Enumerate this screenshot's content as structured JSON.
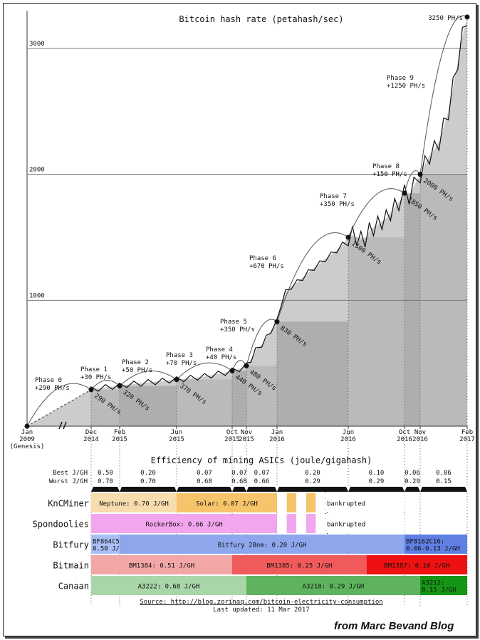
{
  "chart_data": {
    "type": "area",
    "title": "Bitcoin hash rate (petahash/sec)",
    "ylim": [
      0,
      3300
    ],
    "yticks": [
      1000,
      2000,
      3000
    ],
    "grid": true,
    "x_ticks": [
      {
        "label": [
          "Jan",
          "2009",
          "(Genesis)"
        ],
        "x": 0
      },
      {
        "label": [
          "Dec",
          "2014"
        ],
        "x": 1
      },
      {
        "label": [
          "Feb",
          "2015"
        ],
        "x": 3
      },
      {
        "label": [
          "Jun",
          "2015"
        ],
        "x": 7
      },
      {
        "label": [
          "Oct",
          "2015"
        ],
        "x": 11
      },
      {
        "label": [
          "Nov",
          "2015"
        ],
        "x": 12
      },
      {
        "label": [
          "Jan",
          "2016"
        ],
        "x": 14
      },
      {
        "label": [
          "Jun",
          "2016"
        ],
        "x": 19
      },
      {
        "label": [
          "Oct",
          "2016"
        ],
        "x": 23
      },
      {
        "label": [
          "Nov",
          "2016"
        ],
        "x": 24
      },
      {
        "label": [
          "Feb",
          "2017"
        ],
        "x": 27
      }
    ],
    "hash_rate_points": [
      {
        "x": 0,
        "y": 0,
        "label": ""
      },
      {
        "x": 1,
        "y": 290,
        "label": "290 PH/s"
      },
      {
        "x": 3,
        "y": 320,
        "label": "320 PH/s"
      },
      {
        "x": 7,
        "y": 370,
        "label": "370 PH/s"
      },
      {
        "x": 11,
        "y": 440,
        "label": "440 PH/s"
      },
      {
        "x": 12,
        "y": 480,
        "label": "480 PH/s"
      },
      {
        "x": 14,
        "y": 830,
        "label": "830 PH/s"
      },
      {
        "x": 19,
        "y": 1500,
        "label": "1500 PH/s"
      },
      {
        "x": 23,
        "y": 1850,
        "label": "1850 PH/s"
      },
      {
        "x": 24,
        "y": 2000,
        "label": "2000 PH/s"
      },
      {
        "x": 27,
        "y": 3250,
        "label": "3250 PH/s"
      }
    ],
    "hash_rate_series": [
      [
        1,
        290
      ],
      [
        1.5,
        300
      ],
      [
        2,
        308
      ],
      [
        2.5,
        315
      ],
      [
        3,
        320
      ],
      [
        3.5,
        330
      ],
      [
        4,
        335
      ],
      [
        4.5,
        340
      ],
      [
        5,
        348
      ],
      [
        5.5,
        352
      ],
      [
        6,
        358
      ],
      [
        6.5,
        365
      ],
      [
        7,
        370
      ],
      [
        7.5,
        375
      ],
      [
        8,
        382
      ],
      [
        8.5,
        388
      ],
      [
        9,
        395
      ],
      [
        9.5,
        405
      ],
      [
        10,
        415
      ],
      [
        10.5,
        425
      ],
      [
        11,
        440
      ],
      [
        11.5,
        455
      ],
      [
        12,
        480
      ],
      [
        12.3,
        530
      ],
      [
        12.6,
        600
      ],
      [
        13,
        650
      ],
      [
        13.3,
        700
      ],
      [
        13.6,
        760
      ],
      [
        14,
        830
      ],
      [
        14.3,
        980
      ],
      [
        14.6,
        1060
      ],
      [
        15,
        1110
      ],
      [
        15.4,
        1140
      ],
      [
        15.8,
        1180
      ],
      [
        16.2,
        1220
      ],
      [
        16.6,
        1260
      ],
      [
        17,
        1290
      ],
      [
        17.4,
        1330
      ],
      [
        17.8,
        1360
      ],
      [
        18.2,
        1400
      ],
      [
        18.6,
        1440
      ],
      [
        19,
        1500
      ],
      [
        19.3,
        1520
      ],
      [
        19.6,
        1500
      ],
      [
        19.9,
        1480
      ],
      [
        20.2,
        1490
      ],
      [
        20.5,
        1550
      ],
      [
        20.8,
        1580
      ],
      [
        21.1,
        1600
      ],
      [
        21.4,
        1630
      ],
      [
        21.7,
        1650
      ],
      [
        22,
        1700
      ],
      [
        22.3,
        1740
      ],
      [
        22.6,
        1780
      ],
      [
        23,
        1850
      ],
      [
        23.3,
        1830
      ],
      [
        23.6,
        1910
      ],
      [
        24,
        2000
      ],
      [
        24.3,
        2080
      ],
      [
        24.6,
        2150
      ],
      [
        24.9,
        2200
      ],
      [
        25.2,
        2260
      ],
      [
        25.5,
        2380
      ],
      [
        25.8,
        2500
      ],
      [
        26.1,
        2700
      ],
      [
        26.4,
        2900
      ],
      [
        26.7,
        3100
      ],
      [
        27,
        3250
      ]
    ],
    "phases": [
      {
        "name": "Phase 0",
        "delta": "+290 PH/s",
        "from": 0,
        "to": 1
      },
      {
        "name": "Phase 1",
        "delta": "+30 PH/s",
        "from": 1,
        "to": 3
      },
      {
        "name": "Phase 2",
        "delta": "+50 PH/s",
        "from": 3,
        "to": 7
      },
      {
        "name": "Phase 3",
        "delta": "+70 PH/s",
        "from": 7,
        "to": 11
      },
      {
        "name": "Phase 4",
        "delta": "+40 PH/s",
        "from": 11,
        "to": 12
      },
      {
        "name": "Phase 5",
        "delta": "+350 PH/s",
        "from": 12,
        "to": 14
      },
      {
        "name": "Phase 6",
        "delta": "+670 PH/s",
        "from": 14,
        "to": 19
      },
      {
        "name": "Phase 7",
        "delta": "+350 PH/s",
        "from": 19,
        "to": 23
      },
      {
        "name": "Phase 8",
        "delta": "+150 PH/s",
        "from": 23,
        "to": 24
      },
      {
        "name": "Phase 9",
        "delta": "+1250 PH/s",
        "from": 24,
        "to": 27
      }
    ]
  },
  "efficiency": {
    "title": "Efficiency of mining ASICs (joule/gigahash)",
    "best_label": "Best J/GH",
    "worst_label": "Worst J/GH",
    "columns": [
      {
        "from": 1,
        "to": 3,
        "best": "0.50",
        "worst": "0.70"
      },
      {
        "from": 3,
        "to": 7,
        "best": "0.20",
        "worst": "0.70"
      },
      {
        "from": 7,
        "to": 11,
        "best": "0.07",
        "worst": "0.68"
      },
      {
        "from": 11,
        "to": 12,
        "best": "0.07",
        "worst": "0.68"
      },
      {
        "from": 12,
        "to": 14,
        "best": "0.07",
        "worst": "0.66"
      },
      {
        "from": 14,
        "to": 19,
        "best": "0.20",
        "worst": "0.29"
      },
      {
        "from": 19,
        "to": 23,
        "best": "0.10",
        "worst": "0.29"
      },
      {
        "from": 23,
        "to": 24,
        "best": "0.06",
        "worst": "0.29"
      },
      {
        "from": 24,
        "to": 27,
        "best": "0.06",
        "worst": "0.15"
      }
    ],
    "manufacturers": [
      {
        "name": "KnCMiner",
        "bars": [
          {
            "from": 1,
            "to": 7,
            "text": "Neptune: 0.70 J/GH",
            "color": "#f7dcae"
          },
          {
            "from": 7,
            "to": 14,
            "text": "Solar: 0.07 J/GH",
            "color": "#f6c46b"
          },
          {
            "from": 14,
            "to": 17.4,
            "text": "",
            "color": "#f6c46b",
            "striped": true
          },
          {
            "from": 17.4,
            "to": 23,
            "text": "bankrupted",
            "color": "#ffffff"
          }
        ]
      },
      {
        "name": "Spondoolies",
        "bars": [
          {
            "from": 1,
            "to": 14,
            "text": "RockerBox: 0.66 J/GH",
            "color": "#f2a6ee"
          },
          {
            "from": 14,
            "to": 17.4,
            "text": "",
            "color": "#f2a6ee",
            "striped": true
          },
          {
            "from": 17.4,
            "to": 23,
            "text": "bankrupted",
            "color": "#ffffff"
          }
        ]
      },
      {
        "name": "Bitfury",
        "bars": [
          {
            "from": 1,
            "to": 3,
            "text": "BF864C55:\n0.50 J/GH",
            "color": "#a9bff5"
          },
          {
            "from": 3,
            "to": 23,
            "text": "Bitfury 28nm: 0.20 J/GH",
            "color": "#8ea6ec"
          },
          {
            "from": 23,
            "to": 27,
            "text": "BF8162C16:\n0.06-0.13 J/GH",
            "color": "#5f7fe3"
          }
        ]
      },
      {
        "name": "Bitmain",
        "bars": [
          {
            "from": 1,
            "to": 11,
            "text": "BM1384: 0.51 J/GH",
            "color": "#f2a6a6"
          },
          {
            "from": 11,
            "to": 20.3,
            "text": "BM1385: 0.25 J/GH",
            "color": "#f05a5a"
          },
          {
            "from": 20.3,
            "to": 27,
            "text": "BM1387: 0.10 J/GH",
            "color": "#ee1111"
          }
        ]
      },
      {
        "name": "Canaan",
        "bars": [
          {
            "from": 1,
            "to": 12,
            "text": "A3222: 0.68 J/GH",
            "color": "#a8d6a8"
          },
          {
            "from": 12,
            "to": 24,
            "text": "A3218: 0.29 J/GH",
            "color": "#5fb35f"
          },
          {
            "from": 24,
            "to": 27,
            "text": "A3212:\n0.15 J/GH",
            "color": "#149614"
          }
        ]
      }
    ]
  },
  "footer": {
    "source": "Source: http://blog.zorinaq.com/bitcoin-electricity-consumption",
    "updated": "Last updated: 11 Mar 2017",
    "brand": "from Marc Bevand Blog"
  }
}
